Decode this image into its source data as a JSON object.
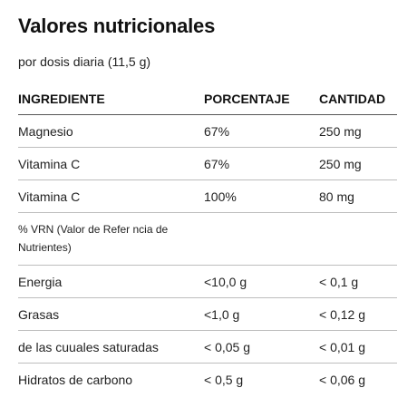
{
  "title": "Valores nutricionales",
  "subtitle": "por dosis diaria (11,5 g)",
  "table": {
    "headers": [
      "INGREDIENTE",
      "PORCENTAJE",
      "CANTIDAD"
    ],
    "rows": [
      [
        "Magnesio",
        "67%",
        "250 mg"
      ],
      [
        "Vitamina C",
        "67%",
        "250 mg"
      ],
      [
        "Vitamina C",
        "100%",
        "80 mg"
      ]
    ],
    "note": "% VRN (Valor de Refer ncia de Nutrientes)",
    "nutrients": [
      [
        "Energia",
        "<10,0 g",
        "< 0,1 g"
      ],
      [
        "Grasas",
        "<1,0 g",
        "< 0,12 g"
      ],
      [
        "de las cuuales saturadas",
        "< 0,05 g",
        "< 0,01 g"
      ],
      [
        "Hidratos de carbono",
        "< 0,5 g",
        "< 0,06 g"
      ]
    ]
  }
}
